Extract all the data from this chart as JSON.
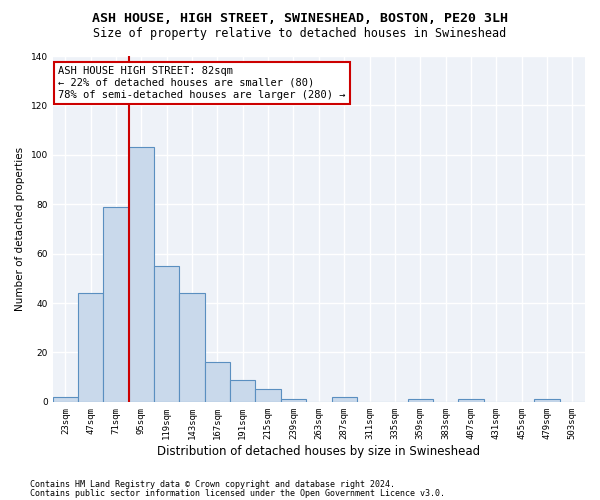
{
  "title1": "ASH HOUSE, HIGH STREET, SWINESHEAD, BOSTON, PE20 3LH",
  "title2": "Size of property relative to detached houses in Swineshead",
  "xlabel": "Distribution of detached houses by size in Swineshead",
  "ylabel": "Number of detached properties",
  "categories": [
    "23sqm",
    "47sqm",
    "71sqm",
    "95sqm",
    "119sqm",
    "143sqm",
    "167sqm",
    "191sqm",
    "215sqm",
    "239sqm",
    "263sqm",
    "287sqm",
    "311sqm",
    "335sqm",
    "359sqm",
    "383sqm",
    "407sqm",
    "431sqm",
    "455sqm",
    "479sqm",
    "503sqm"
  ],
  "values": [
    2,
    44,
    79,
    103,
    55,
    44,
    16,
    9,
    5,
    1,
    0,
    2,
    0,
    0,
    1,
    0,
    1,
    0,
    0,
    1,
    0
  ],
  "bar_color": "#c9d9eb",
  "bar_edge_color": "#5a8fc0",
  "bar_edge_width": 0.8,
  "vline_x_index": 2,
  "vline_color": "#cc0000",
  "annotation_text": "ASH HOUSE HIGH STREET: 82sqm\n← 22% of detached houses are smaller (80)\n78% of semi-detached houses are larger (280) →",
  "annotation_box_color": "white",
  "annotation_box_edge": "#cc0000",
  "ylim": [
    0,
    140
  ],
  "yticks": [
    0,
    20,
    40,
    60,
    80,
    100,
    120,
    140
  ],
  "footer1": "Contains HM Land Registry data © Crown copyright and database right 2024.",
  "footer2": "Contains public sector information licensed under the Open Government Licence v3.0.",
  "bg_color": "#eef2f8",
  "grid_color": "white",
  "title1_fontsize": 9.5,
  "title2_fontsize": 8.5,
  "xlabel_fontsize": 8.5,
  "ylabel_fontsize": 7.5,
  "tick_fontsize": 6.5,
  "footer_fontsize": 6.0,
  "annot_fontsize": 7.5
}
